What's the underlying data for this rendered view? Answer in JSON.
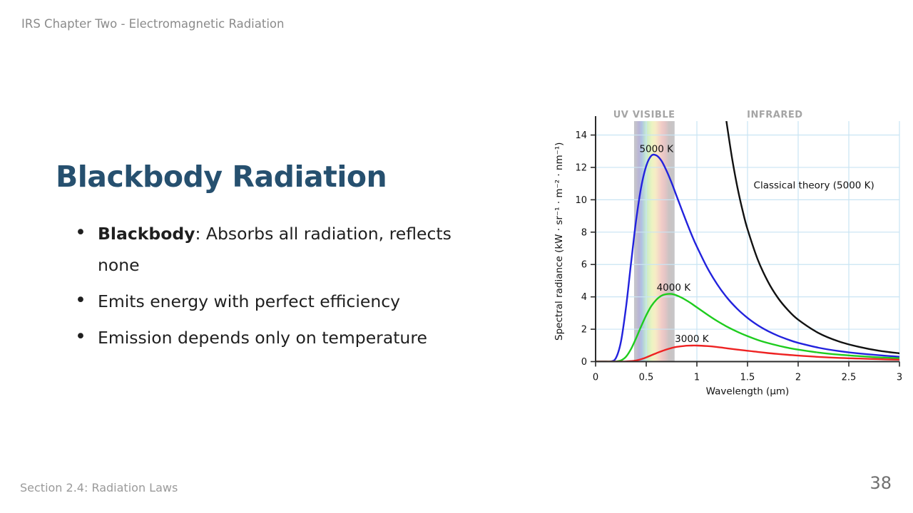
{
  "slide": {
    "header": "IRS Chapter Two - Electromagnetic Radiation",
    "title": "Blackbody Radiation",
    "bullets": [
      {
        "bold": "Blackbody",
        "text": ": Absorbs all radiation, reflects none"
      },
      {
        "bold": "",
        "text": "Emits energy with perfect efficiency"
      },
      {
        "bold": "",
        "text": "Emission depends only on temperature"
      }
    ],
    "footer": "Section 2.4: Radiation Laws",
    "page_number": "38",
    "colors": {
      "title_blue": "#26506f",
      "header_gray": "#8b8b8b",
      "body_text": "#1f1f1f"
    }
  },
  "chart_data": {
    "type": "line",
    "title": "",
    "xlabel": "Wavelength (μm)",
    "ylabel": "Spectral radiance (kW · sr⁻¹ · m⁻² · nm⁻¹)",
    "xlim": [
      0,
      3
    ],
    "ylim": [
      0,
      14.86
    ],
    "xticks": [
      0,
      0.5,
      1,
      1.5,
      2,
      2.5,
      3
    ],
    "yticks": [
      0,
      2,
      4,
      6,
      8,
      10,
      12,
      14
    ],
    "grid": true,
    "grid_color": "#c9e4f3",
    "axis_color": "#2b2b2b",
    "region_labels": [
      {
        "label": "UV",
        "x": 0.25
      },
      {
        "label": "VISIBLE",
        "x": 0.575
      },
      {
        "label": "INFRARED",
        "x": 1.77
      }
    ],
    "visible_band": {
      "from": 0.38,
      "to": 0.78,
      "stops": [
        {
          "o": 0.0,
          "c": "#c5c5c9"
        },
        {
          "o": 0.05,
          "c": "#c3c1cd"
        },
        {
          "o": 0.12,
          "c": "#b8b4d6"
        },
        {
          "o": 0.19,
          "c": "#b0c2e4"
        },
        {
          "o": 0.27,
          "c": "#bfe3d0"
        },
        {
          "o": 0.35,
          "c": "#d4efc4"
        },
        {
          "o": 0.44,
          "c": "#ecf3c1"
        },
        {
          "o": 0.52,
          "c": "#f6edc5"
        },
        {
          "o": 0.6,
          "c": "#f5dcc7"
        },
        {
          "o": 0.68,
          "c": "#f1cbc7"
        },
        {
          "o": 0.77,
          "c": "#e3c5c5"
        },
        {
          "o": 0.86,
          "c": "#cbc3c3"
        },
        {
          "o": 1.0,
          "c": "#c6c6c8"
        }
      ]
    },
    "series": [
      {
        "name": "5000 K",
        "color": "#2222dd",
        "label_at": [
          0.6,
          12.95
        ],
        "label_anchor": "middle",
        "x": [
          0,
          0.05,
          0.1,
          0.15,
          0.2,
          0.25,
          0.3,
          0.35,
          0.4,
          0.45,
          0.5,
          0.55,
          0.6,
          0.65,
          0.7,
          0.75,
          0.8,
          0.85,
          0.9,
          0.95,
          1,
          1.1,
          1.2,
          1.3,
          1.4,
          1.5,
          1.6,
          1.7,
          1.8,
          1.9,
          2,
          2.2,
          2.4,
          2.6,
          2.8,
          3
        ],
        "y": [
          0,
          0,
          0,
          0.01,
          0.21,
          1.22,
          3.34,
          6.09,
          8.73,
          10.78,
          12.09,
          12.72,
          12.74,
          12.41,
          11.8,
          11.06,
          10.23,
          9.4,
          8.59,
          7.81,
          7.1,
          5.83,
          4.78,
          3.93,
          3.25,
          2.7,
          2.25,
          1.89,
          1.6,
          1.36,
          1.16,
          0.86,
          0.65,
          0.5,
          0.39,
          0.3
        ]
      },
      {
        "name": "4000 K",
        "color": "#1ecc1e",
        "label_at": [
          0.77,
          4.38
        ],
        "label_anchor": "middle",
        "x": [
          0,
          0.05,
          0.1,
          0.15,
          0.2,
          0.25,
          0.3,
          0.35,
          0.4,
          0.45,
          0.5,
          0.55,
          0.6,
          0.65,
          0.7,
          0.75,
          0.8,
          0.85,
          0.9,
          0.95,
          1,
          1.1,
          1.2,
          1.3,
          1.4,
          1.5,
          1.6,
          1.7,
          1.8,
          1.9,
          2,
          2.2,
          2.4,
          2.6,
          2.8,
          3
        ],
        "y": [
          0,
          0,
          0,
          0,
          0.01,
          0.07,
          0.3,
          0.78,
          1.45,
          2.18,
          2.86,
          3.43,
          3.82,
          4.07,
          4.17,
          4.18,
          4.09,
          3.95,
          3.77,
          3.57,
          3.35,
          2.92,
          2.51,
          2.15,
          1.84,
          1.57,
          1.34,
          1.15,
          0.99,
          0.85,
          0.74,
          0.56,
          0.43,
          0.34,
          0.26,
          0.21
        ]
      },
      {
        "name": "3000 K",
        "color": "#ee2222",
        "label_at": [
          0.95,
          1.22
        ],
        "label_anchor": "middle",
        "x": [
          0,
          0.05,
          0.1,
          0.15,
          0.2,
          0.25,
          0.3,
          0.35,
          0.4,
          0.45,
          0.5,
          0.55,
          0.6,
          0.65,
          0.7,
          0.75,
          0.8,
          0.85,
          0.9,
          0.95,
          1,
          1.1,
          1.2,
          1.3,
          1.4,
          1.5,
          1.6,
          1.7,
          1.8,
          1.9,
          2,
          2.2,
          2.4,
          2.6,
          2.8,
          3
        ],
        "y": [
          0,
          0,
          0,
          0,
          0,
          0,
          0.01,
          0.03,
          0.07,
          0.15,
          0.26,
          0.39,
          0.52,
          0.64,
          0.75,
          0.84,
          0.91,
          0.95,
          0.98,
          0.99,
          0.99,
          0.96,
          0.9,
          0.82,
          0.74,
          0.67,
          0.6,
          0.53,
          0.47,
          0.42,
          0.37,
          0.29,
          0.23,
          0.19,
          0.15,
          0.12
        ]
      },
      {
        "name": "Classical theory (5000 K)",
        "color": "#111111",
        "label_at": [
          1.56,
          10.7
        ],
        "label_anchor": "start",
        "x": [
          1.29,
          1.3,
          1.35,
          1.4,
          1.45,
          1.5,
          1.6,
          1.7,
          1.8,
          1.9,
          2,
          2.2,
          2.4,
          2.6,
          2.8,
          3
        ],
        "y": [
          14.95,
          14.5,
          12.47,
          10.78,
          9.37,
          8.18,
          6.32,
          4.96,
          3.94,
          3.18,
          2.59,
          1.77,
          1.25,
          0.91,
          0.67,
          0.51
        ]
      }
    ]
  }
}
